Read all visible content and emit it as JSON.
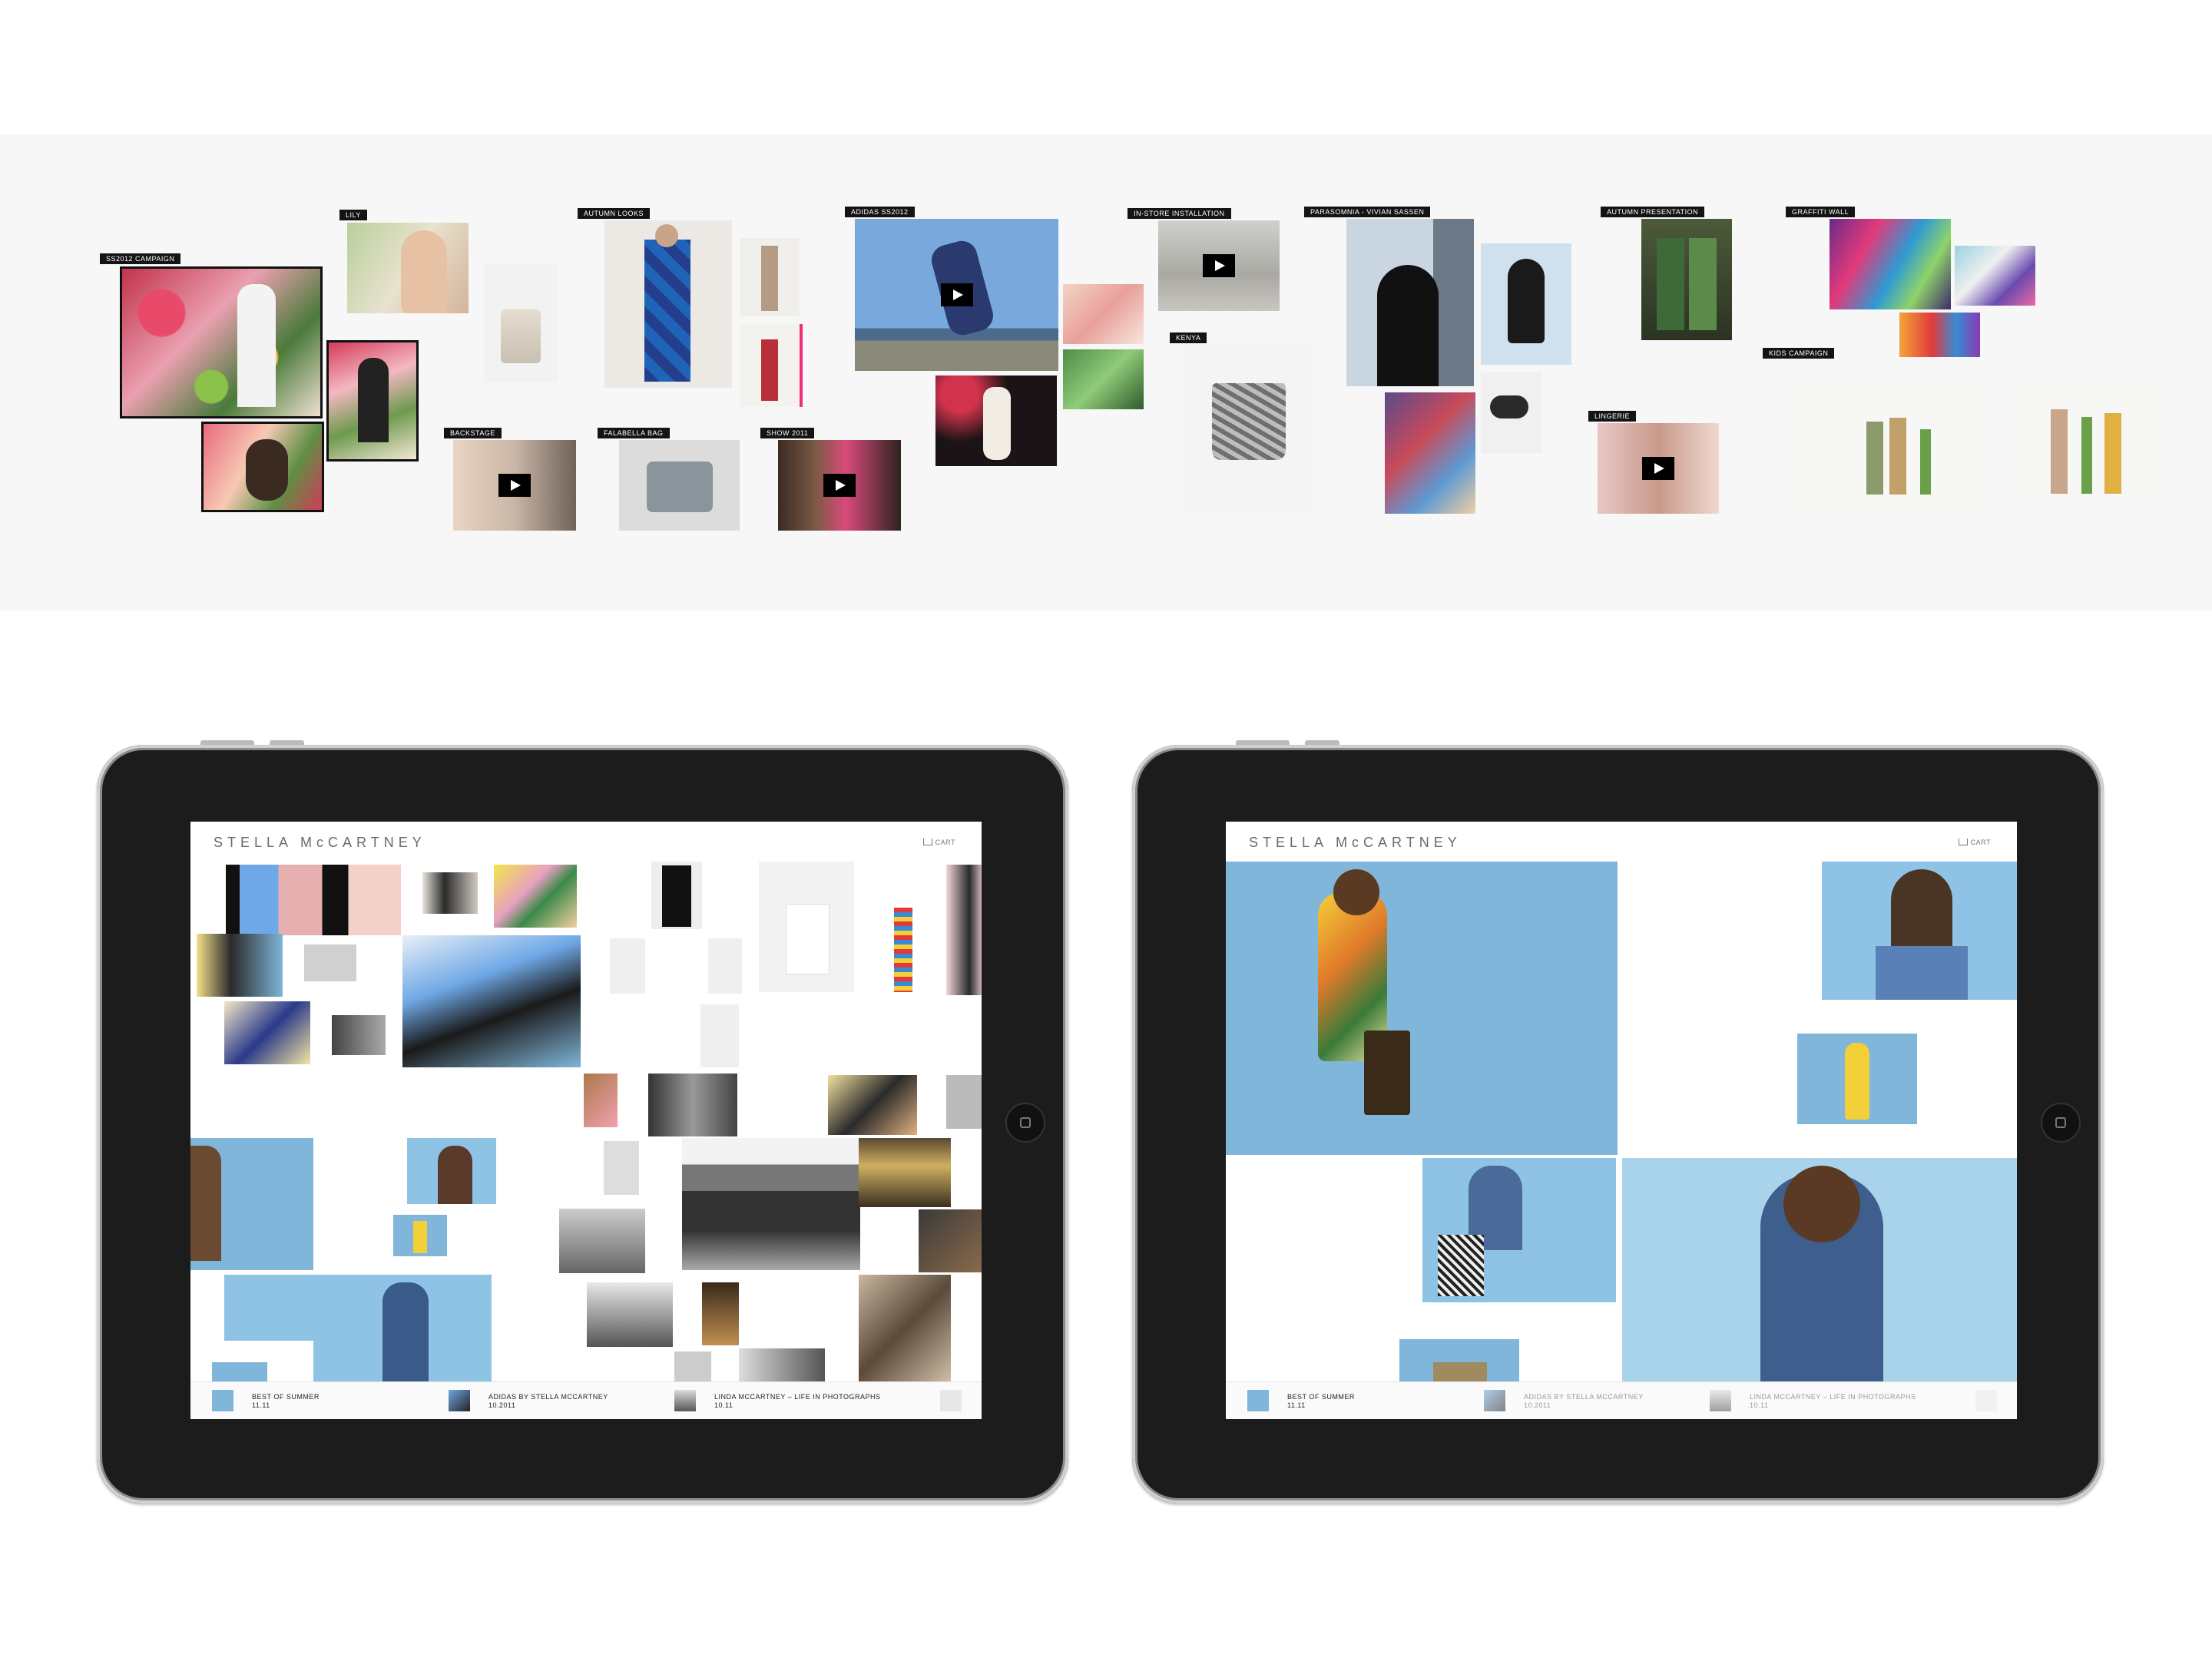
{
  "moodboard": {
    "labels": {
      "ss2012_campaign": "SS2012 CAMPAIGN",
      "lily": "LILY",
      "autumn_looks": "AUTUMN LOOKS",
      "adidas_ss2012": "ADIDAS SS2012",
      "instore_installation": "IN-STORE INSTALLATION",
      "parasomnia": "PARASOMNIA - VIVIAN SASSEN",
      "autumn_presentation": "AUTUMN PRESENTATION",
      "graffiti_wall": "GRAFFITI WALL",
      "kids_campaign": "KIDS CAMPAIGN",
      "backstage": "BACKSTAGE",
      "falabella_bag": "FALABELLA BAG",
      "show_2011": "SHOW 2011",
      "kenya": "KENYA",
      "lingerie": "LINGERIE"
    }
  },
  "app": {
    "logo": "STELLA McCARTNEY",
    "cart_label": "CART",
    "bottom_bar": [
      {
        "title": "BEST OF SUMMER",
        "date": "11.11"
      },
      {
        "title": "ADIDAS BY STELLA MCCARTNEY",
        "date": "10.2011"
      },
      {
        "title": "LINDA MCCARTNEY – LIFE IN PHOTOGRAPHS",
        "date": "10.11"
      }
    ]
  },
  "colors": {
    "label_bg": "#141414",
    "device_bezel": "#1c1c1c",
    "sky_blue": "#7fb6d9",
    "band_bg": "#f7f7f7"
  }
}
